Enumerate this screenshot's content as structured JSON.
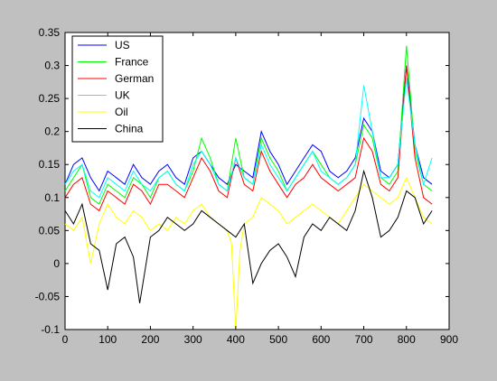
{
  "chart_data": {
    "type": "line",
    "title": "",
    "xlabel": "",
    "ylabel": "",
    "xlim": [
      0,
      900
    ],
    "ylim": [
      -0.1,
      0.35
    ],
    "xticks": [
      0,
      100,
      200,
      300,
      400,
      500,
      600,
      700,
      800,
      900
    ],
    "xtick_labels": [
      "0",
      "100",
      "200",
      "300",
      "400",
      "500",
      "600",
      "700",
      "800",
      "900"
    ],
    "yticks": [
      -0.1,
      -0.05,
      0,
      0.05,
      0.1,
      0.15,
      0.2,
      0.25,
      0.3,
      0.35
    ],
    "ytick_labels": [
      "-0.1",
      "-0.05",
      "0",
      "0.05",
      "0.1",
      "0.15",
      "0.2",
      "0.25",
      "0.3",
      "0.35"
    ],
    "grid": false,
    "legend_position": "top-left",
    "series": [
      {
        "name": "US",
        "color": "#0000ff",
        "x": [
          0,
          20,
          40,
          60,
          80,
          100,
          120,
          140,
          160,
          180,
          200,
          220,
          240,
          260,
          280,
          300,
          320,
          340,
          360,
          380,
          400,
          420,
          440,
          460,
          480,
          500,
          520,
          540,
          560,
          580,
          600,
          620,
          640,
          660,
          680,
          700,
          720,
          740,
          760,
          780,
          800,
          820,
          840,
          860
        ],
        "y": [
          0.12,
          0.15,
          0.16,
          0.13,
          0.11,
          0.14,
          0.13,
          0.12,
          0.15,
          0.13,
          0.12,
          0.14,
          0.15,
          0.13,
          0.12,
          0.16,
          0.17,
          0.15,
          0.13,
          0.12,
          0.15,
          0.14,
          0.13,
          0.2,
          0.17,
          0.15,
          0.12,
          0.14,
          0.16,
          0.18,
          0.17,
          0.14,
          0.13,
          0.14,
          0.16,
          0.22,
          0.2,
          0.14,
          0.13,
          0.15,
          0.3,
          0.18,
          0.13,
          0.12
        ]
      },
      {
        "name": "France",
        "color": "#00ff00",
        "x": [
          0,
          20,
          40,
          60,
          80,
          100,
          120,
          140,
          160,
          180,
          200,
          220,
          240,
          260,
          280,
          300,
          320,
          340,
          360,
          380,
          400,
          420,
          440,
          460,
          480,
          500,
          520,
          540,
          560,
          580,
          600,
          620,
          640,
          660,
          680,
          700,
          720,
          740,
          760,
          780,
          800,
          820,
          840,
          860
        ],
        "y": [
          0.11,
          0.13,
          0.15,
          0.1,
          0.09,
          0.12,
          0.11,
          0.1,
          0.13,
          0.12,
          0.1,
          0.13,
          0.14,
          0.12,
          0.11,
          0.14,
          0.19,
          0.16,
          0.12,
          0.11,
          0.19,
          0.13,
          0.12,
          0.19,
          0.16,
          0.14,
          0.11,
          0.13,
          0.15,
          0.17,
          0.15,
          0.13,
          0.12,
          0.13,
          0.15,
          0.21,
          0.19,
          0.13,
          0.12,
          0.14,
          0.33,
          0.17,
          0.12,
          0.11
        ]
      },
      {
        "name": "German",
        "color": "#ff0000",
        "x": [
          0,
          20,
          40,
          60,
          80,
          100,
          120,
          140,
          160,
          180,
          200,
          220,
          240,
          260,
          280,
          300,
          320,
          340,
          360,
          380,
          400,
          420,
          440,
          460,
          480,
          500,
          520,
          540,
          560,
          580,
          600,
          620,
          640,
          660,
          680,
          700,
          720,
          740,
          760,
          780,
          800,
          820,
          840,
          860
        ],
        "y": [
          0.1,
          0.12,
          0.13,
          0.09,
          0.08,
          0.11,
          0.1,
          0.09,
          0.12,
          0.11,
          0.09,
          0.12,
          0.12,
          0.11,
          0.1,
          0.13,
          0.16,
          0.14,
          0.11,
          0.1,
          0.16,
          0.12,
          0.11,
          0.17,
          0.14,
          0.12,
          0.1,
          0.12,
          0.13,
          0.15,
          0.13,
          0.12,
          0.11,
          0.12,
          0.13,
          0.19,
          0.17,
          0.12,
          0.11,
          0.13,
          0.3,
          0.16,
          0.1,
          0.09
        ]
      },
      {
        "name": "UK",
        "color": "#00ffff",
        "x": [
          0,
          20,
          40,
          60,
          80,
          100,
          120,
          140,
          160,
          180,
          200,
          220,
          240,
          260,
          280,
          300,
          320,
          340,
          360,
          380,
          400,
          420,
          440,
          460,
          480,
          500,
          520,
          540,
          560,
          580,
          600,
          620,
          640,
          660,
          680,
          700,
          720,
          740,
          760,
          780,
          800,
          820,
          840,
          860
        ],
        "y": [
          0.12,
          0.14,
          0.15,
          0.11,
          0.1,
          0.13,
          0.12,
          0.11,
          0.14,
          0.12,
          0.11,
          0.13,
          0.14,
          0.12,
          0.11,
          0.15,
          0.17,
          0.15,
          0.12,
          0.11,
          0.16,
          0.13,
          0.12,
          0.18,
          0.15,
          0.13,
          0.11,
          0.13,
          0.15,
          0.17,
          0.14,
          0.13,
          0.12,
          0.13,
          0.15,
          0.27,
          0.2,
          0.13,
          0.13,
          0.15,
          0.28,
          0.18,
          0.12,
          0.16
        ]
      },
      {
        "name": "Oil",
        "color": "#ffff00",
        "x": [
          0,
          20,
          40,
          60,
          80,
          100,
          120,
          140,
          160,
          180,
          200,
          220,
          240,
          260,
          280,
          300,
          320,
          340,
          360,
          380,
          390,
          400,
          410,
          420,
          440,
          460,
          480,
          500,
          520,
          540,
          560,
          580,
          600,
          620,
          640,
          660,
          680,
          700,
          720,
          740,
          760,
          780,
          800,
          820,
          840,
          860
        ],
        "y": [
          0.06,
          0.05,
          0.07,
          0.0,
          0.06,
          0.09,
          0.07,
          0.06,
          0.08,
          0.07,
          0.05,
          0.06,
          0.05,
          0.07,
          0.06,
          0.08,
          0.09,
          0.07,
          0.06,
          0.05,
          0.03,
          -0.1,
          0.02,
          0.06,
          0.07,
          0.1,
          0.09,
          0.08,
          0.06,
          0.07,
          0.08,
          0.09,
          0.08,
          0.07,
          0.06,
          0.08,
          0.1,
          0.12,
          0.11,
          0.1,
          0.09,
          0.1,
          0.13,
          0.1,
          0.07,
          0.06
        ]
      },
      {
        "name": "China",
        "color": "#000000",
        "x": [
          0,
          20,
          40,
          60,
          80,
          100,
          120,
          140,
          160,
          175,
          190,
          200,
          220,
          240,
          260,
          280,
          300,
          320,
          340,
          360,
          380,
          400,
          420,
          440,
          460,
          480,
          500,
          520,
          540,
          560,
          580,
          600,
          620,
          640,
          660,
          680,
          700,
          720,
          740,
          760,
          780,
          800,
          820,
          840,
          860
        ],
        "y": [
          0.08,
          0.06,
          0.09,
          0.03,
          0.02,
          -0.04,
          0.03,
          0.04,
          0.01,
          -0.06,
          0.0,
          0.04,
          0.05,
          0.07,
          0.06,
          0.05,
          0.06,
          0.08,
          0.07,
          0.06,
          0.05,
          0.04,
          0.06,
          -0.03,
          0.0,
          0.02,
          0.03,
          0.01,
          -0.02,
          0.04,
          0.06,
          0.05,
          0.07,
          0.06,
          0.05,
          0.08,
          0.14,
          0.1,
          0.04,
          0.05,
          0.07,
          0.11,
          0.1,
          0.06,
          0.08
        ]
      }
    ]
  }
}
